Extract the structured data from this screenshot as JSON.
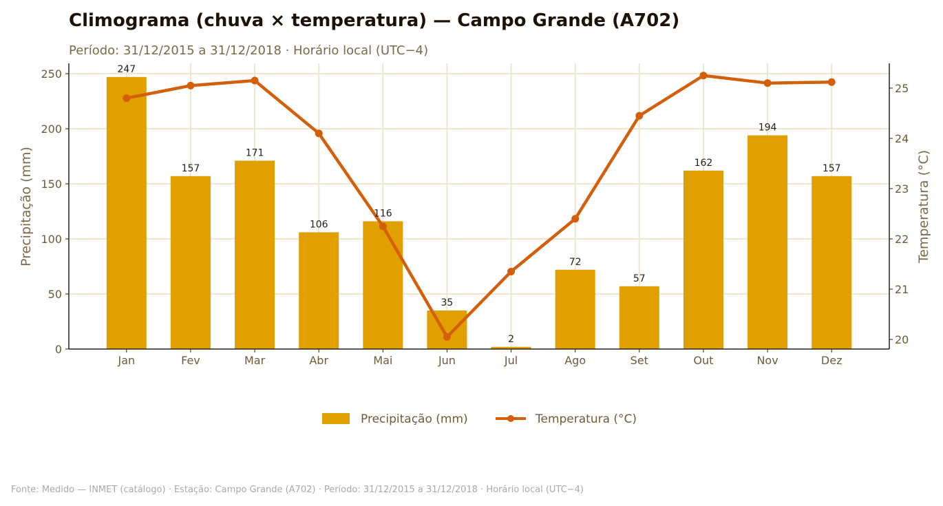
{
  "colors": {
    "bar": "#e29f00",
    "line": "#d45f0a",
    "grid": "#f0e5d0",
    "axis": "#222222"
  },
  "chart_data": {
    "type": "bar+line",
    "title": "Climograma (chuva × temperatura) — Campo Grande (A702)",
    "subtitle": "Período: 31/12/2015 a 31/12/2018 · Horário local (UTC−4)",
    "categories": [
      "Jan",
      "Fev",
      "Mar",
      "Abr",
      "Mai",
      "Jun",
      "Jul",
      "Ago",
      "Set",
      "Out",
      "Nov",
      "Dez"
    ],
    "series": [
      {
        "name": "Precipitação (mm)",
        "type": "bar",
        "axis": "left",
        "values": [
          247,
          157,
          171,
          106,
          116,
          35,
          2,
          72,
          57,
          162,
          194,
          157
        ],
        "labels": [
          "247",
          "157",
          "171",
          "106",
          "116",
          "35",
          "2",
          "72",
          "57",
          "162",
          "194",
          "157"
        ]
      },
      {
        "name": "Temperatura (°C)",
        "type": "line",
        "axis": "right",
        "values": [
          24.8,
          25.05,
          25.15,
          24.1,
          22.25,
          20.05,
          21.35,
          22.4,
          24.45,
          25.25,
          25.1,
          25.12
        ]
      }
    ],
    "y_left": {
      "label": "Precipitação (mm)",
      "ylim": [
        0,
        260
      ],
      "ticks": [
        0,
        50,
        100,
        150,
        200,
        250
      ]
    },
    "y_right": {
      "label": "Temperatura (°C)",
      "ylim": [
        19.9,
        25.5
      ],
      "ticks": [
        20,
        21,
        22,
        23,
        24,
        25
      ]
    },
    "grid": true,
    "legend_position": "bottom-center"
  },
  "footer": "Fonte: Medido — INMET (catálogo) · Estação: Campo Grande (A702) · Período: 31/12/2015 a 31/12/2018 · Horário local (UTC−4)"
}
